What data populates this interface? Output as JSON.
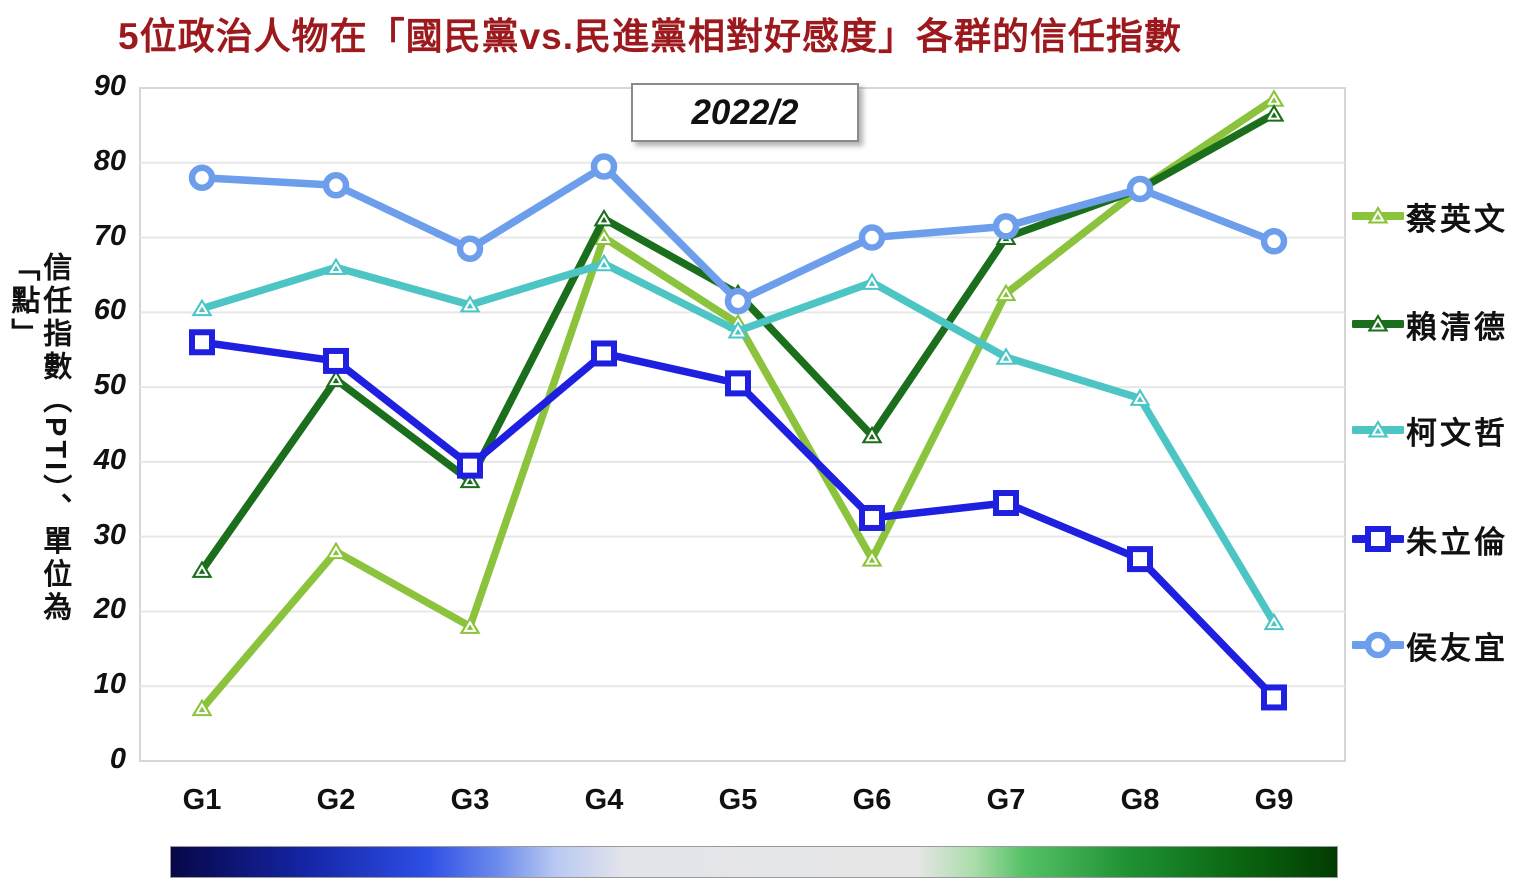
{
  "title": "5位政治人物在「國民黨vs.民進黨相對好感度」各群的信任指數",
  "period_label": "2022/2",
  "y_axis": {
    "title": "信任指數（PTI）、單位為「點」",
    "ticks": [
      0,
      10,
      20,
      30,
      40,
      50,
      60,
      70,
      80,
      90
    ]
  },
  "chart_data": {
    "type": "line",
    "categories": [
      "G1",
      "G2",
      "G3",
      "G4",
      "G5",
      "G6",
      "G7",
      "G8",
      "G9"
    ],
    "series": [
      {
        "name": "蔡英文",
        "color": "#8CC33C",
        "marker": "triangle",
        "values": [
          7,
          28,
          18,
          70,
          58.5,
          27,
          62.5,
          76.5,
          88.5
        ]
      },
      {
        "name": "賴清德",
        "color": "#1B6E1B",
        "marker": "triangle",
        "values": [
          25.5,
          51,
          37.5,
          72.5,
          62.5,
          43.5,
          70,
          76.5,
          86.5
        ]
      },
      {
        "name": "柯文哲",
        "color": "#4DC5C5",
        "marker": "triangle",
        "values": [
          60.5,
          66,
          61,
          66.5,
          57.5,
          64,
          54,
          48.5,
          18.5
        ]
      },
      {
        "name": "朱立倫",
        "color": "#1F1FE0",
        "marker": "square",
        "values": [
          56,
          53.5,
          39.5,
          54.5,
          50.5,
          32.5,
          34.5,
          27,
          8.5
        ]
      },
      {
        "name": "侯友宜",
        "color": "#6D9EEB",
        "marker": "circle",
        "values": [
          78,
          77,
          68.5,
          79.5,
          61.5,
          70,
          71.5,
          76.5,
          69.5
        ]
      }
    ],
    "title": "5位政治人物在「國民黨vs.民進黨相對好感度」各群的信任指數",
    "xlabel": "",
    "ylabel": "信任指數（PTI）、單位為「點」",
    "ylim": [
      0,
      90
    ],
    "grid": true,
    "legend_position": "right",
    "annotations": [
      "2022/2"
    ]
  },
  "gradient_bar": {
    "left_color": "#070747",
    "mid_color": "#E6E6E6",
    "right_color": "#023C02"
  },
  "colors": {
    "title_red": "#9C1A1E",
    "gridline": "#E7E7E7",
    "plot_border": "#D6D6D6"
  }
}
